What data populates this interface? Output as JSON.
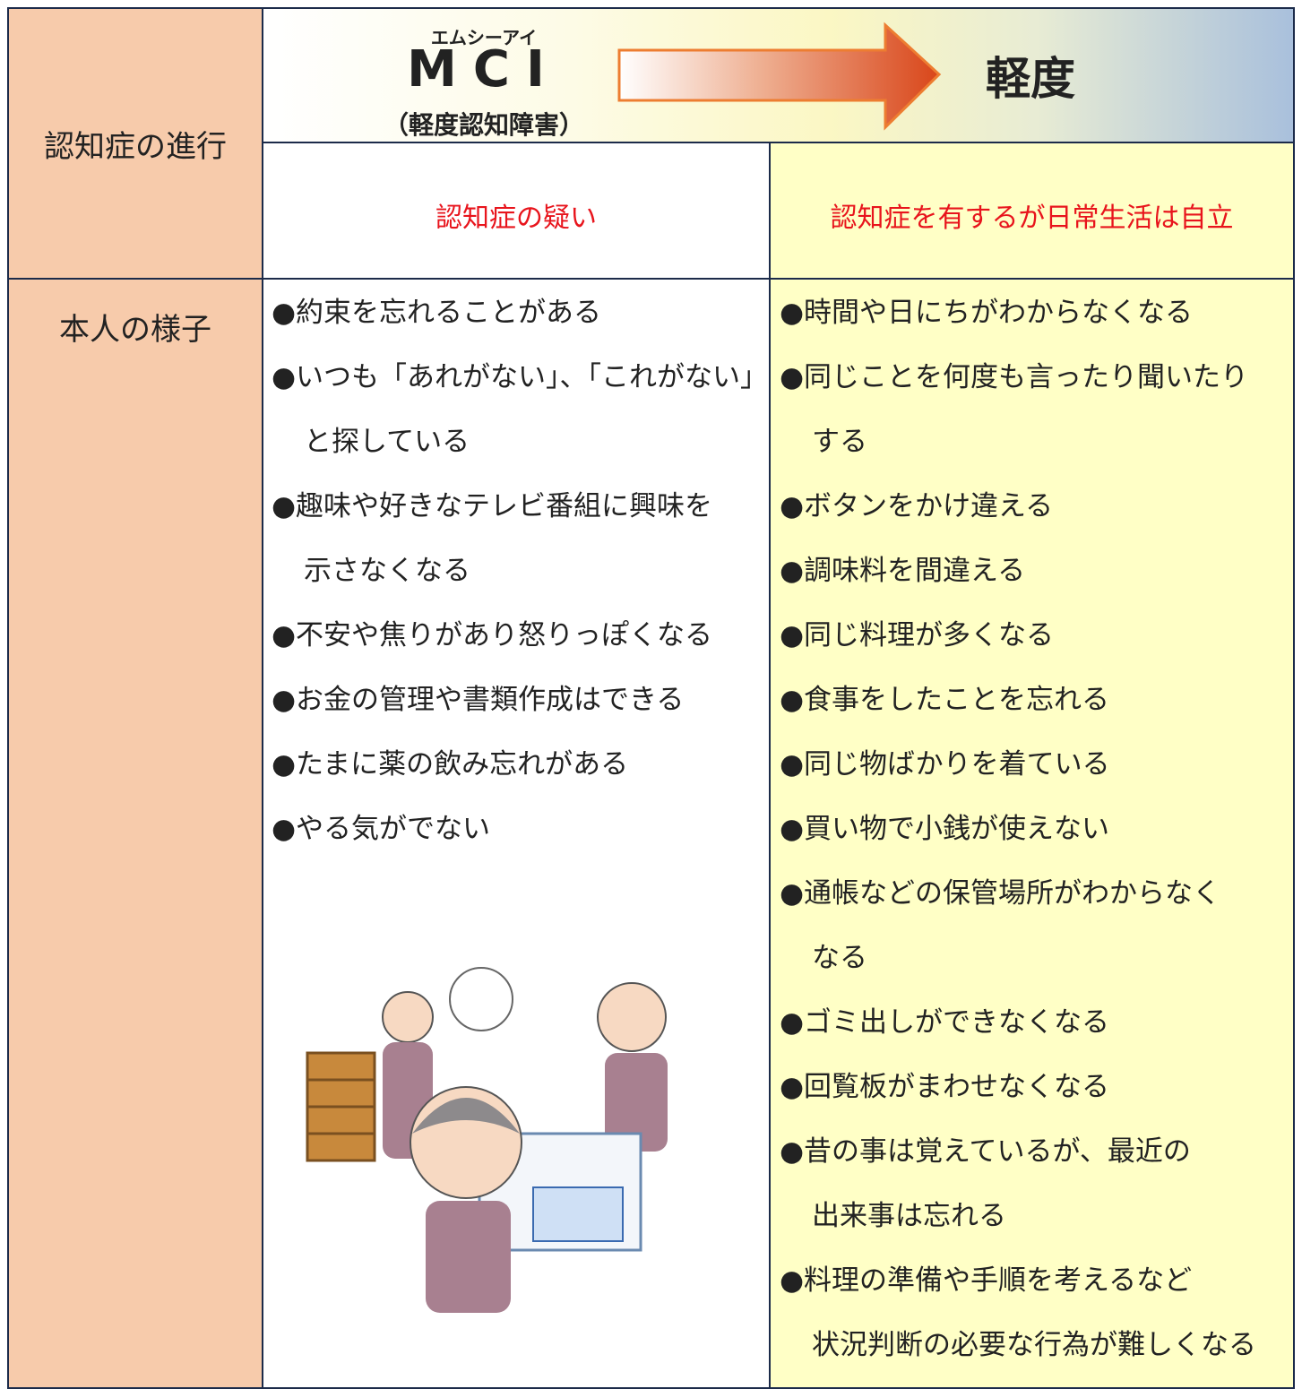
{
  "header": {
    "progression_label": "認知症の進行",
    "mci": {
      "ruby": "エムシーアイ",
      "title": "MCI",
      "subtitle": "（軽度認知障害）"
    },
    "mild": "軽度",
    "mci_desc": "認知症の疑い",
    "mild_desc": "認知症を有するが日常生活は自立"
  },
  "body": {
    "label": "本人の様子",
    "mci_items": [
      [
        "●約束を忘れることがある"
      ],
      [
        "●いつも「あれがない」、「これがない」",
        "と探している"
      ],
      [
        "●趣味や好きなテレビ番組に興味を",
        "示さなくなる"
      ],
      [
        "●不安や焦りがあり怒りっぽくなる"
      ],
      [
        "●お金の管理や書類作成はできる"
      ],
      [
        "●たまに薬の飲み忘れがある"
      ],
      [
        "●やる気がでない"
      ]
    ],
    "mild_items": [
      [
        "●時間や日にちがわからなくなる"
      ],
      [
        "●同じことを何度も言ったり聞いたり",
        "する"
      ],
      [
        "●ボタンをかけ違える"
      ],
      [
        "●調味料を間違える"
      ],
      [
        "●同じ料理が多くなる"
      ],
      [
        "●食事をしたことを忘れる"
      ],
      [
        "●同じ物ばかりを着ている"
      ],
      [
        "●買い物で小銭が使えない"
      ],
      [
        "●通帳などの保管場所がわからなく",
        "なる"
      ],
      [
        "●ゴミ出しができなくなる"
      ],
      [
        "●回覧板がまわせなくなる"
      ],
      [
        "●昔の事は覚えているが、最近の",
        "出来事は忘れる"
      ],
      [
        "●料理の準備や手順を考えるなど",
        "状況判断の必要な行為が難しくなる"
      ]
    ]
  }
}
